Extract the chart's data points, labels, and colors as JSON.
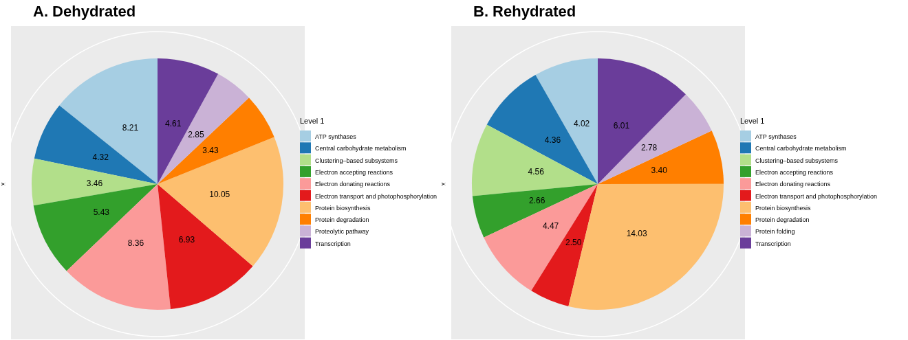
{
  "chart_data": [
    {
      "type": "pie",
      "title": "A. Dehydrated",
      "ylabel": "x",
      "legend_title": "Level 1",
      "legend": "right",
      "categories": [
        "ATP synthases",
        "Central carbohydrate metabolism",
        "Clustering–based subsystems",
        "Electron accepting reactions",
        "Electron donating reactions",
        "Electron transport and photophosphorylation",
        "Protein biosynthesis",
        "Protein degradation",
        "Proteolytic pathway",
        "Transcription"
      ],
      "values": [
        8.21,
        4.32,
        3.46,
        5.43,
        8.36,
        6.93,
        10.05,
        3.43,
        2.85,
        4.61
      ],
      "value_labels": [
        "8.21",
        "4.32",
        "3.46",
        "5.43",
        "8.36",
        "6.93",
        "10.05",
        "3.43",
        "2.85",
        "4.61"
      ],
      "colors": [
        "#a6cee3",
        "#1f78b4",
        "#b2df8a",
        "#33a02c",
        "#fb9a99",
        "#e31a1c",
        "#fdbf6f",
        "#ff7f00",
        "#cab2d6",
        "#6a3d9a"
      ]
    },
    {
      "type": "pie",
      "title": "B. Rehydrated",
      "ylabel": "x",
      "legend_title": "Level 1",
      "legend": "right",
      "categories": [
        "ATP synthases",
        "Central carbohydrate metabolism",
        "Clustering–based subsystems",
        "Electron accepting reactions",
        "Electron donating reactions",
        "Electron transport and photophosphorylation",
        "Protein biosynthesis",
        "Protein degradation",
        "Protein folding",
        "Transcription"
      ],
      "values": [
        4.02,
        4.36,
        4.56,
        2.66,
        4.47,
        2.5,
        14.03,
        3.4,
        2.78,
        6.01
      ],
      "value_labels": [
        "4.02",
        "4.36",
        "4.56",
        "2.66",
        "4.47",
        "2.50",
        "14.03",
        "3.40",
        "2.78",
        "6.01"
      ],
      "colors": [
        "#a6cee3",
        "#1f78b4",
        "#b2df8a",
        "#33a02c",
        "#fb9a99",
        "#e31a1c",
        "#fdbf6f",
        "#ff7f00",
        "#cab2d6",
        "#6a3d9a"
      ]
    }
  ]
}
